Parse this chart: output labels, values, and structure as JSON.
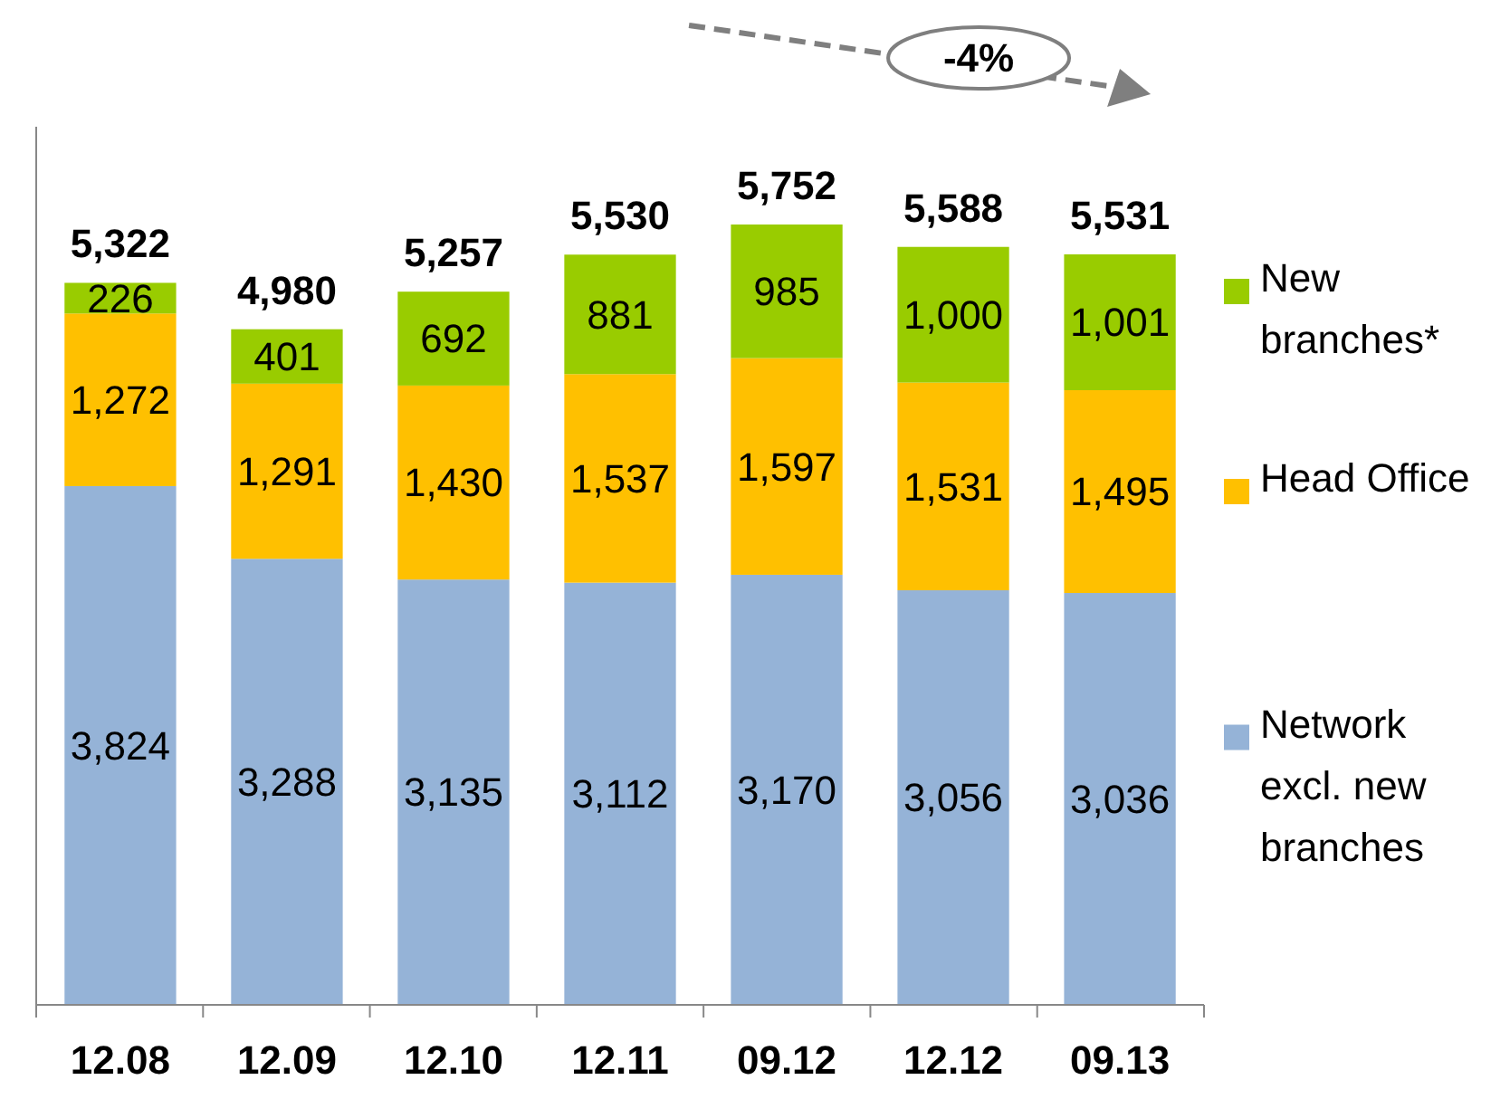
{
  "chart_data": {
    "type": "bar",
    "stacked": true,
    "legend": "right",
    "categories": [
      "12.08",
      "12.09",
      "12.10",
      "12.11",
      "09.12",
      "12.12",
      "09.13"
    ],
    "series": [
      {
        "name": "Network excl. new branches",
        "color": "#95b3d7",
        "values": [
          3824,
          3288,
          3135,
          3112,
          3170,
          3056,
          3036
        ],
        "value_labels": [
          "3,824",
          "3,288",
          "3,135",
          "3,112",
          "3,170",
          "3,056",
          "3,036"
        ]
      },
      {
        "name": "Head Office",
        "color": "#ffc000",
        "values": [
          1272,
          1291,
          1430,
          1537,
          1597,
          1531,
          1495
        ],
        "value_labels": [
          "1,272",
          "1,291",
          "1,430",
          "1,537",
          "1,597",
          "1,531",
          "1,495"
        ]
      },
      {
        "name": "New branches*",
        "color": "#99cc00",
        "values": [
          226,
          401,
          692,
          881,
          985,
          1000,
          1001
        ],
        "value_labels": [
          "226",
          "401",
          "692",
          "881",
          "985",
          "1,000",
          "1,001"
        ]
      }
    ],
    "totals": [
      "5,322",
      "4,980",
      "5,257",
      "5,530",
      "5,752",
      "5,588",
      "5,531"
    ],
    "annotations": [
      "-4%"
    ]
  }
}
